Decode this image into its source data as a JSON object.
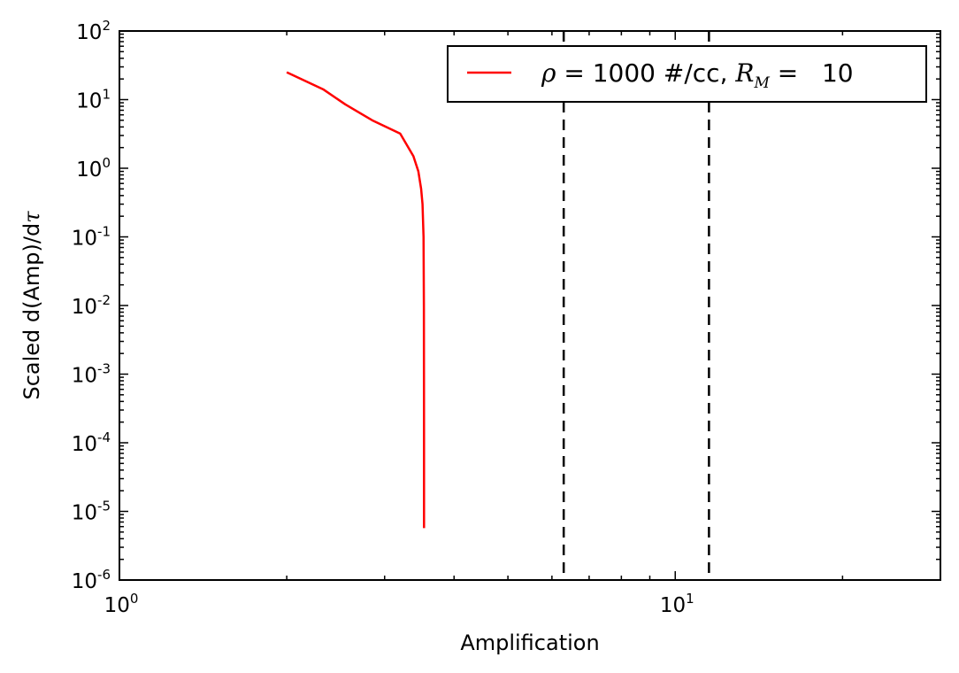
{
  "chart_data": {
    "type": "line",
    "xscale": "log",
    "yscale": "log",
    "xlim": [
      1,
      30
    ],
    "ylim": [
      1e-06,
      100
    ],
    "xlabel": "Amplification",
    "ylabel": {
      "prefix": "Scaled d(Amp)/d",
      "symbol": "τ"
    },
    "x_ticks": [
      {
        "value": 1,
        "base": "10",
        "exp": "0"
      },
      {
        "value": 10,
        "base": "10",
        "exp": "1"
      }
    ],
    "y_ticks": [
      {
        "value": 100,
        "base": "10",
        "exp": "2"
      },
      {
        "value": 10,
        "base": "10",
        "exp": "1"
      },
      {
        "value": 1,
        "base": "10",
        "exp": "0"
      },
      {
        "value": 0.1,
        "base": "10",
        "exp": "-1"
      },
      {
        "value": 0.01,
        "base": "10",
        "exp": "-2"
      },
      {
        "value": 0.001,
        "base": "10",
        "exp": "-3"
      },
      {
        "value": 0.0001,
        "base": "10",
        "exp": "-4"
      },
      {
        "value": 1e-05,
        "base": "10",
        "exp": "-5"
      },
      {
        "value": 1e-06,
        "base": "10",
        "exp": "-6"
      }
    ],
    "series": [
      {
        "legend": {
          "symbol": "ρ",
          "text": " = 1000 #/cc, ",
          "r_symbol": "R",
          "r_sub": "M",
          "suffix": " =   10"
        },
        "color": "#ff0000",
        "points": [
          [
            2.0,
            25
          ],
          [
            2.33,
            14
          ],
          [
            2.55,
            8.5
          ],
          [
            2.85,
            5.0
          ],
          [
            3.2,
            3.2
          ],
          [
            3.38,
            1.5
          ],
          [
            3.45,
            0.9
          ],
          [
            3.49,
            0.5
          ],
          [
            3.51,
            0.3
          ],
          [
            3.525,
            0.1
          ],
          [
            3.53,
            0.01
          ],
          [
            3.531,
            0.001
          ],
          [
            3.532,
            0.0001
          ],
          [
            3.532,
            1e-05
          ],
          [
            3.532,
            5.7e-06
          ]
        ]
      }
    ],
    "vlines": [
      {
        "x": 6.3,
        "color": "#000000",
        "style": "dashed"
      },
      {
        "x": 11.5,
        "color": "#000000",
        "style": "dashed"
      }
    ],
    "legend_position": "top-right",
    "grid": false
  }
}
